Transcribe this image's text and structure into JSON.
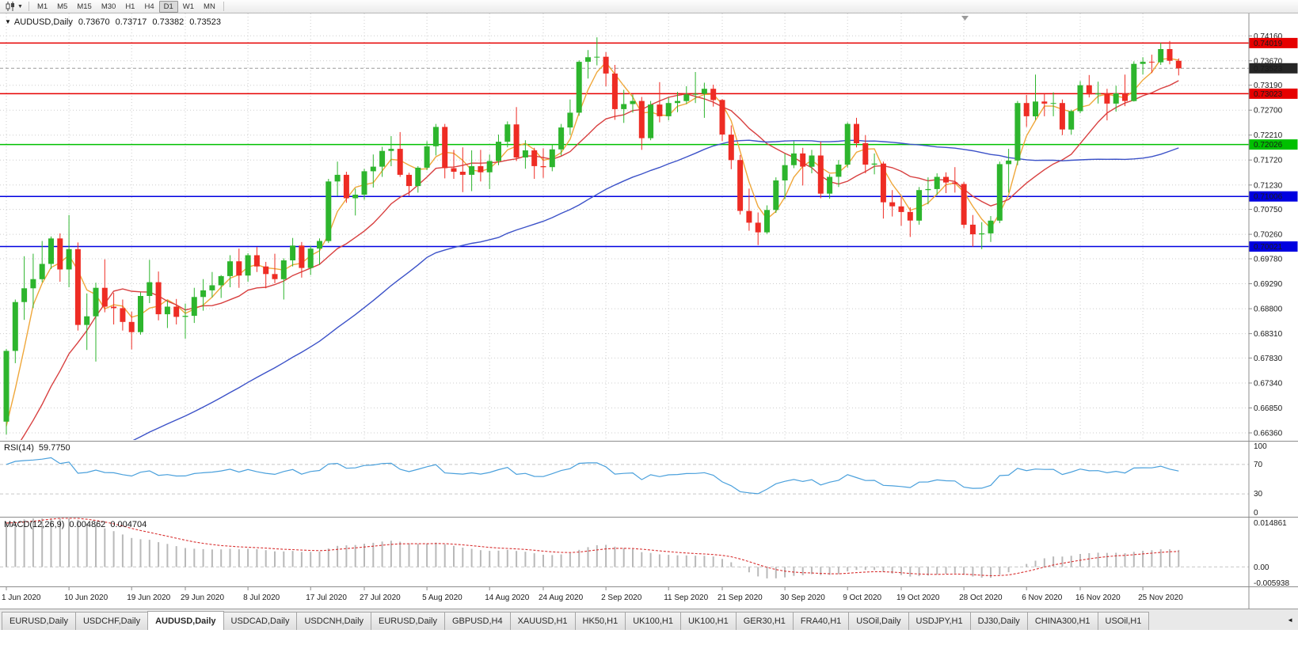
{
  "toolbar": {
    "timeframes": [
      "M1",
      "M5",
      "M15",
      "M30",
      "H1",
      "H4",
      "D1",
      "W1",
      "MN"
    ],
    "active_timeframe": "D1",
    "chart_type_icon": "candlestick-chart",
    "dropdown_icon": "caret-down"
  },
  "chart_header": {
    "menu_icon": "▼",
    "symbol": "AUDUSD,Daily",
    "open": "0.73670",
    "high": "0.73717",
    "low": "0.73382",
    "close": "0.73523"
  },
  "indicators": {
    "rsi": {
      "label": "RSI(14)",
      "value": "59.7750",
      "scale_labels": [
        "100",
        "70",
        "30",
        "0"
      ]
    },
    "macd": {
      "label": "MACD(12,26,9)",
      "value_macd": "0.004862",
      "value_signal": "0.004704",
      "scale_labels": [
        "0.014861",
        "0.00",
        "-0.005938"
      ]
    }
  },
  "price_axis": {
    "tags": [
      {
        "value": "0.74019",
        "color": "#e60000",
        "type": "resistance-line"
      },
      {
        "value": "0.73523",
        "color": "#262626",
        "type": "current-price"
      },
      {
        "value": "0.73023",
        "color": "#e60000",
        "type": "resistance-line"
      },
      {
        "value": "0.72026",
        "color": "#00c000",
        "type": "support-line"
      },
      {
        "value": "0.71006",
        "color": "#0000e0",
        "type": "support-line"
      },
      {
        "value": "0.70021",
        "color": "#0000e0",
        "type": "support-line"
      }
    ]
  },
  "tabs": {
    "items": [
      "EURUSD,Daily",
      "USDCHF,Daily",
      "AUDUSD,Daily",
      "USDCAD,Daily",
      "USDCNH,Daily",
      "EURUSD,Daily",
      "GBPUSD,H4",
      "XAUUSD,H1",
      "HK50,H1",
      "UK100,H1",
      "UK100,H1",
      "GER30,H1",
      "FRA40,H1",
      "USOil,Daily",
      "USDJPY,H1",
      "DJ30,Daily",
      "CHINA300,H1",
      "USOil,H1"
    ],
    "active_index": 2,
    "scroll_icon": "◄"
  },
  "chart_data": [
    {
      "type": "candlestick",
      "title": "AUDUSD,Daily",
      "y_axis_side": "right",
      "ylim": [
        0.6622,
        0.746
      ],
      "y_ticks": [
        "0.74160",
        "0.73670",
        "0.73190",
        "0.72700",
        "0.72210",
        "0.71720",
        "0.71230",
        "0.70750",
        "0.70260",
        "0.69780",
        "0.69290",
        "0.68800",
        "0.68310",
        "0.67830",
        "0.67340",
        "0.66850",
        "0.66360"
      ],
      "x_labels": [
        "1 Jun 2020",
        "10 Jun 2020",
        "19 Jun 2020",
        "29 Jun 2020",
        "8 Jul 2020",
        "17 Jul 2020",
        "27 Jul 2020",
        "5 Aug 2020",
        "14 Aug 2020",
        "24 Aug 2020",
        "2 Sep 2020",
        "11 Sep 2020",
        "21 Sep 2020",
        "30 Sep 2020",
        "9 Oct 2020",
        "19 Oct 2020",
        "28 Oct 2020",
        "6 Nov 2020",
        "16 Nov 2020",
        "25 Nov 2020"
      ],
      "x_label_indices": [
        0,
        7,
        14,
        20,
        27,
        34,
        40,
        47,
        54,
        60,
        67,
        74,
        80,
        87,
        94,
        100,
        107,
        114,
        120,
        127
      ],
      "up_color": "#2db52d",
      "down_color": "#ee2c24",
      "candles_ohlc": [
        [
          0.6658,
          0.6801,
          0.6633,
          0.6797
        ],
        [
          0.6797,
          0.6898,
          0.6773,
          0.6893
        ],
        [
          0.6893,
          0.6983,
          0.6858,
          0.692
        ],
        [
          0.692,
          0.6988,
          0.6881,
          0.6938
        ],
        [
          0.6938,
          0.7013,
          0.6932,
          0.6968
        ],
        [
          0.6968,
          0.7022,
          0.6958,
          0.7018
        ],
        [
          0.7018,
          0.7028,
          0.6933,
          0.6957
        ],
        [
          0.6957,
          0.7064,
          0.6922,
          0.6997
        ],
        [
          0.6997,
          0.701,
          0.6837,
          0.6848
        ],
        [
          0.6848,
          0.691,
          0.6799,
          0.6865
        ],
        [
          0.6865,
          0.6931,
          0.6776,
          0.6921
        ],
        [
          0.6921,
          0.6977,
          0.6873,
          0.6884
        ],
        [
          0.6884,
          0.6911,
          0.6849,
          0.6881
        ],
        [
          0.6881,
          0.6898,
          0.6837,
          0.6854
        ],
        [
          0.6854,
          0.6874,
          0.68,
          0.6834
        ],
        [
          0.6834,
          0.6912,
          0.6829,
          0.6905
        ],
        [
          0.6905,
          0.6976,
          0.6891,
          0.6932
        ],
        [
          0.6932,
          0.6953,
          0.6857,
          0.6869
        ],
        [
          0.6869,
          0.6896,
          0.6842,
          0.6884
        ],
        [
          0.6884,
          0.6899,
          0.6849,
          0.6864
        ],
        [
          0.6864,
          0.689,
          0.6821,
          0.6866
        ],
        [
          0.6866,
          0.6921,
          0.6852,
          0.6903
        ],
        [
          0.6903,
          0.6938,
          0.6876,
          0.6916
        ],
        [
          0.6916,
          0.6952,
          0.6902,
          0.6926
        ],
        [
          0.6926,
          0.6946,
          0.6901,
          0.6944
        ],
        [
          0.6944,
          0.6985,
          0.6922,
          0.6973
        ],
        [
          0.6973,
          0.6998,
          0.6921,
          0.6945
        ],
        [
          0.6945,
          0.6989,
          0.6933,
          0.6985
        ],
        [
          0.6985,
          0.7001,
          0.6952,
          0.6963
        ],
        [
          0.6963,
          0.6972,
          0.692,
          0.6948
        ],
        [
          0.6948,
          0.6988,
          0.693,
          0.6938
        ],
        [
          0.6938,
          0.6979,
          0.6898,
          0.6975
        ],
        [
          0.6975,
          0.7019,
          0.6963,
          0.7004
        ],
        [
          0.7004,
          0.7011,
          0.6941,
          0.696
        ],
        [
          0.696,
          0.7003,
          0.6946,
          0.6998
        ],
        [
          0.6998,
          0.7018,
          0.6966,
          0.7013
        ],
        [
          0.7013,
          0.7135,
          0.7009,
          0.713
        ],
        [
          0.713,
          0.7169,
          0.7101,
          0.7143
        ],
        [
          0.7143,
          0.7149,
          0.7088,
          0.7097
        ],
        [
          0.7097,
          0.7116,
          0.7063,
          0.7104
        ],
        [
          0.7104,
          0.7155,
          0.7094,
          0.715
        ],
        [
          0.715,
          0.7183,
          0.7118,
          0.7159
        ],
        [
          0.7159,
          0.7198,
          0.7139,
          0.719
        ],
        [
          0.719,
          0.7219,
          0.716,
          0.7194
        ],
        [
          0.7194,
          0.7227,
          0.7139,
          0.7143
        ],
        [
          0.7143,
          0.7147,
          0.7102,
          0.7121
        ],
        [
          0.7121,
          0.716,
          0.7108,
          0.7157
        ],
        [
          0.7157,
          0.7209,
          0.7152,
          0.7199
        ],
        [
          0.7199,
          0.7243,
          0.7181,
          0.7237
        ],
        [
          0.7237,
          0.7243,
          0.7136,
          0.7156
        ],
        [
          0.7156,
          0.7192,
          0.7135,
          0.7149
        ],
        [
          0.7149,
          0.7197,
          0.7109,
          0.7143
        ],
        [
          0.7143,
          0.7191,
          0.7111,
          0.716
        ],
        [
          0.716,
          0.7192,
          0.713,
          0.7148
        ],
        [
          0.7148,
          0.7183,
          0.7115,
          0.717
        ],
        [
          0.717,
          0.7222,
          0.7162,
          0.7208
        ],
        [
          0.7208,
          0.7248,
          0.7197,
          0.7242
        ],
        [
          0.7242,
          0.7276,
          0.717,
          0.7177
        ],
        [
          0.7177,
          0.7211,
          0.7155,
          0.7191
        ],
        [
          0.7191,
          0.7196,
          0.7135,
          0.716
        ],
        [
          0.716,
          0.7195,
          0.7137,
          0.7158
        ],
        [
          0.7158,
          0.7203,
          0.715,
          0.7193
        ],
        [
          0.7193,
          0.7243,
          0.7181,
          0.7236
        ],
        [
          0.7236,
          0.7291,
          0.7221,
          0.7265
        ],
        [
          0.7265,
          0.7368,
          0.7259,
          0.7365
        ],
        [
          0.7365,
          0.7388,
          0.7332,
          0.7374
        ],
        [
          0.7374,
          0.7413,
          0.7358,
          0.7375
        ],
        [
          0.7375,
          0.7384,
          0.7317,
          0.7342
        ],
        [
          0.7342,
          0.7359,
          0.7251,
          0.7272
        ],
        [
          0.7272,
          0.731,
          0.7245,
          0.7282
        ],
        [
          0.7282,
          0.7301,
          0.7265,
          0.7288
        ],
        [
          0.7288,
          0.7296,
          0.7192,
          0.7215
        ],
        [
          0.7215,
          0.7288,
          0.7211,
          0.7281
        ],
        [
          0.7281,
          0.7325,
          0.7246,
          0.7258
        ],
        [
          0.7258,
          0.7295,
          0.725,
          0.7284
        ],
        [
          0.7284,
          0.7306,
          0.7266,
          0.7288
        ],
        [
          0.7288,
          0.7317,
          0.7282,
          0.7301
        ],
        [
          0.7301,
          0.7345,
          0.7284,
          0.7302
        ],
        [
          0.7302,
          0.7324,
          0.7255,
          0.7312
        ],
        [
          0.7312,
          0.732,
          0.7277,
          0.729
        ],
        [
          0.729,
          0.7292,
          0.7209,
          0.7222
        ],
        [
          0.7222,
          0.724,
          0.7154,
          0.7172
        ],
        [
          0.7172,
          0.7182,
          0.7065,
          0.7072
        ],
        [
          0.7072,
          0.7116,
          0.7033,
          0.7049
        ],
        [
          0.7049,
          0.7069,
          0.7005,
          0.703
        ],
        [
          0.703,
          0.7083,
          0.7027,
          0.7074
        ],
        [
          0.7074,
          0.7138,
          0.7068,
          0.7132
        ],
        [
          0.7132,
          0.7185,
          0.7095,
          0.7162
        ],
        [
          0.7162,
          0.7209,
          0.7156,
          0.7185
        ],
        [
          0.7185,
          0.7196,
          0.7122,
          0.7159
        ],
        [
          0.7159,
          0.7192,
          0.7146,
          0.7181
        ],
        [
          0.7181,
          0.7208,
          0.7097,
          0.7106
        ],
        [
          0.7106,
          0.7144,
          0.7096,
          0.7139
        ],
        [
          0.7139,
          0.7172,
          0.7119,
          0.7163
        ],
        [
          0.7163,
          0.7246,
          0.7157,
          0.7243
        ],
        [
          0.7243,
          0.7255,
          0.7197,
          0.7205
        ],
        [
          0.7205,
          0.7221,
          0.7146,
          0.7163
        ],
        [
          0.7163,
          0.7185,
          0.7144,
          0.7165
        ],
        [
          0.7165,
          0.7169,
          0.7057,
          0.7089
        ],
        [
          0.7089,
          0.7113,
          0.7061,
          0.7081
        ],
        [
          0.7081,
          0.7099,
          0.7043,
          0.707
        ],
        [
          0.707,
          0.7079,
          0.7021,
          0.7053
        ],
        [
          0.7053,
          0.7119,
          0.7045,
          0.7113
        ],
        [
          0.7113,
          0.7138,
          0.7085,
          0.7115
        ],
        [
          0.7115,
          0.7146,
          0.7103,
          0.7139
        ],
        [
          0.7139,
          0.7148,
          0.7107,
          0.7128
        ],
        [
          0.7128,
          0.7158,
          0.7108,
          0.7125
        ],
        [
          0.7125,
          0.7129,
          0.7038,
          0.7045
        ],
        [
          0.7045,
          0.7064,
          0.7002,
          0.7026
        ],
        [
          0.7026,
          0.705,
          0.6997,
          0.7028
        ],
        [
          0.7028,
          0.7062,
          0.7011,
          0.7053
        ],
        [
          0.7053,
          0.7169,
          0.7048,
          0.7164
        ],
        [
          0.7164,
          0.7194,
          0.7108,
          0.7171
        ],
        [
          0.7171,
          0.7288,
          0.7162,
          0.7284
        ],
        [
          0.7284,
          0.73,
          0.7237,
          0.7258
        ],
        [
          0.7258,
          0.734,
          0.7251,
          0.7287
        ],
        [
          0.7287,
          0.7302,
          0.7258,
          0.7283
        ],
        [
          0.7283,
          0.7305,
          0.7258,
          0.7284
        ],
        [
          0.7284,
          0.7291,
          0.7221,
          0.7232
        ],
        [
          0.7232,
          0.7271,
          0.7222,
          0.7268
        ],
        [
          0.7268,
          0.7327,
          0.7264,
          0.7319
        ],
        [
          0.7319,
          0.7339,
          0.7295,
          0.7301
        ],
        [
          0.7301,
          0.7326,
          0.7283,
          0.7303
        ],
        [
          0.7303,
          0.7312,
          0.725,
          0.7283
        ],
        [
          0.7283,
          0.7318,
          0.7267,
          0.7303
        ],
        [
          0.7303,
          0.734,
          0.7278,
          0.7288
        ],
        [
          0.7288,
          0.7366,
          0.7287,
          0.7361
        ],
        [
          0.7361,
          0.7374,
          0.734,
          0.7365
        ],
        [
          0.7365,
          0.7379,
          0.7343,
          0.7364
        ],
        [
          0.7364,
          0.7402,
          0.7359,
          0.739
        ],
        [
          0.739,
          0.7406,
          0.736,
          0.7367
        ],
        [
          0.7367,
          0.73717,
          0.73382,
          0.73523
        ]
      ],
      "hlines": [
        {
          "price": 0.74019,
          "color": "#e60000",
          "style": "solid"
        },
        {
          "price": 0.73023,
          "color": "#e60000",
          "style": "solid"
        },
        {
          "price": 0.72026,
          "color": "#00c000",
          "style": "solid"
        },
        {
          "price": 0.71006,
          "color": "#0000e0",
          "style": "solid"
        },
        {
          "price": 0.70021,
          "color": "#0000e0",
          "style": "solid"
        },
        {
          "price": 0.73523,
          "color": "#9a9a9a",
          "style": "dash"
        }
      ],
      "moving_averages": [
        {
          "period": 4,
          "seed": 0.66,
          "color": "#efa73a"
        },
        {
          "period": 13,
          "seed": 0.656,
          "color": "#d84040"
        },
        {
          "period": 48,
          "seed": 0.649,
          "color": "#3c52c8"
        }
      ]
    },
    {
      "type": "line",
      "name": "RSI(14)",
      "period": 14,
      "ylim": [
        0,
        100
      ],
      "levels": [
        70,
        30
      ],
      "color": "#4aa0dc",
      "last_value": 59.775
    },
    {
      "type": "bar+line",
      "name": "MACD(12,26,9)",
      "fast": 12,
      "slow": 26,
      "signal_period": 9,
      "ylim": [
        -0.005938,
        0.014861
      ],
      "histogram_color": "#b9b9b9",
      "signal_color": "#d83030",
      "ema_seeds": [
        0.6655,
        0.6525,
        0.0135
      ],
      "last_macd": 0.004862,
      "last_signal": 0.004704
    }
  ]
}
